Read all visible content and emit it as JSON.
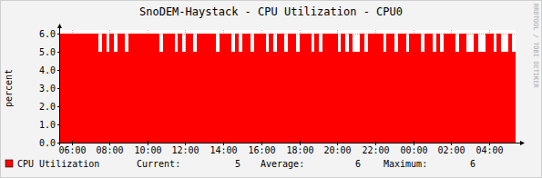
{
  "chart_data": {
    "type": "area",
    "title": "SnoDEM-Haystack - CPU Utilization - CPU0",
    "y_label": "percent",
    "watermark": "RRDTOOL / TOBI OETIKER",
    "x": [
      5.4,
      5.6,
      5.8,
      6.0,
      6.2,
      6.4,
      6.6,
      6.8,
      7.0,
      7.2,
      7.4,
      7.6,
      7.8,
      8.0,
      8.2,
      8.4,
      8.6,
      8.8,
      9.0,
      9.2,
      9.4,
      9.6,
      9.8,
      10.0,
      10.2,
      10.4,
      10.6,
      10.8,
      11.0,
      11.2,
      11.4,
      11.6,
      11.8,
      12.0,
      12.2,
      12.4,
      12.6,
      12.8,
      13.0,
      13.2,
      13.4,
      13.6,
      13.8,
      14.0,
      14.2,
      14.4,
      14.6,
      14.8,
      15.0,
      15.2,
      15.4,
      15.6,
      15.8,
      16.0,
      16.2,
      16.4,
      16.6,
      16.8,
      17.0,
      17.2,
      17.4,
      17.6,
      17.8,
      18.0,
      18.2,
      18.4,
      18.6,
      18.8,
      19.0,
      19.2,
      19.4,
      19.6,
      19.8,
      20.0,
      20.2,
      20.4,
      20.6,
      20.8,
      21.0,
      21.2,
      21.4,
      21.6,
      21.8,
      22.0,
      22.2,
      22.4,
      22.6,
      22.8,
      23.0,
      23.2,
      23.4,
      23.6,
      23.8,
      24.0,
      24.2,
      24.4,
      24.6,
      24.8,
      25.0,
      25.2,
      25.4,
      25.6,
      25.8,
      26.0,
      26.2,
      26.4,
      26.6,
      26.8,
      27.0,
      27.2,
      27.4,
      27.6,
      27.8,
      28.0,
      28.2,
      28.4,
      28.6,
      28.8,
      29.0,
      29.2
    ],
    "series": [
      {
        "name": "CPU Utilization",
        "color": "#ff0000",
        "values": [
          6,
          6,
          6,
          6,
          6,
          6,
          6,
          6,
          6,
          6,
          5,
          6,
          5,
          6,
          5,
          6,
          6,
          5,
          6,
          6,
          6,
          6,
          6,
          6,
          6,
          6,
          5,
          6,
          6,
          6,
          5,
          6,
          5,
          6,
          6,
          5,
          6,
          6,
          6,
          6,
          6,
          5,
          6,
          6,
          6,
          5,
          6,
          5,
          6,
          6,
          5,
          6,
          6,
          6,
          5,
          6,
          5,
          6,
          6,
          5,
          6,
          6,
          5,
          6,
          6,
          6,
          5,
          6,
          5,
          6,
          6,
          6,
          6,
          5,
          6,
          5,
          6,
          5,
          5,
          6,
          5,
          6,
          6,
          6,
          6,
          5,
          6,
          6,
          5,
          6,
          6,
          5,
          6,
          6,
          6,
          5,
          6,
          6,
          5,
          6,
          5,
          6,
          6,
          6,
          5,
          6,
          6,
          5,
          5,
          6,
          5,
          5,
          6,
          6,
          5,
          6,
          5,
          5,
          6,
          5
        ]
      }
    ],
    "stats": [
      {
        "label": "Current:",
        "value": 5
      },
      {
        "label": "Average:",
        "value": 6
      },
      {
        "label": "Maximum:",
        "value": 6
      }
    ],
    "xlim": [
      5.4,
      29.4
    ],
    "xticks": [
      {
        "value": 6,
        "label": "06:00"
      },
      {
        "value": 8,
        "label": "08:00"
      },
      {
        "value": 10,
        "label": "10:00"
      },
      {
        "value": 12,
        "label": "12:00"
      },
      {
        "value": 14,
        "label": "14:00"
      },
      {
        "value": 16,
        "label": "16:00"
      },
      {
        "value": 18,
        "label": "18:00"
      },
      {
        "value": 20,
        "label": "20:00"
      },
      {
        "value": 22,
        "label": "22:00"
      },
      {
        "value": 24,
        "label": "00:00"
      },
      {
        "value": 26,
        "label": "02:00"
      },
      {
        "value": 28,
        "label": "04:00"
      }
    ],
    "ylim": [
      0,
      6
    ],
    "yticks": [
      {
        "value": 0,
        "label": "0.0"
      },
      {
        "value": 1,
        "label": "1.0"
      },
      {
        "value": 2,
        "label": "2.0"
      },
      {
        "value": 3,
        "label": "3.0"
      },
      {
        "value": 4,
        "label": "4.0"
      },
      {
        "value": 5,
        "label": "5.0"
      },
      {
        "value": 6,
        "label": "6.0"
      }
    ],
    "grid": true,
    "legend": "bottom"
  }
}
